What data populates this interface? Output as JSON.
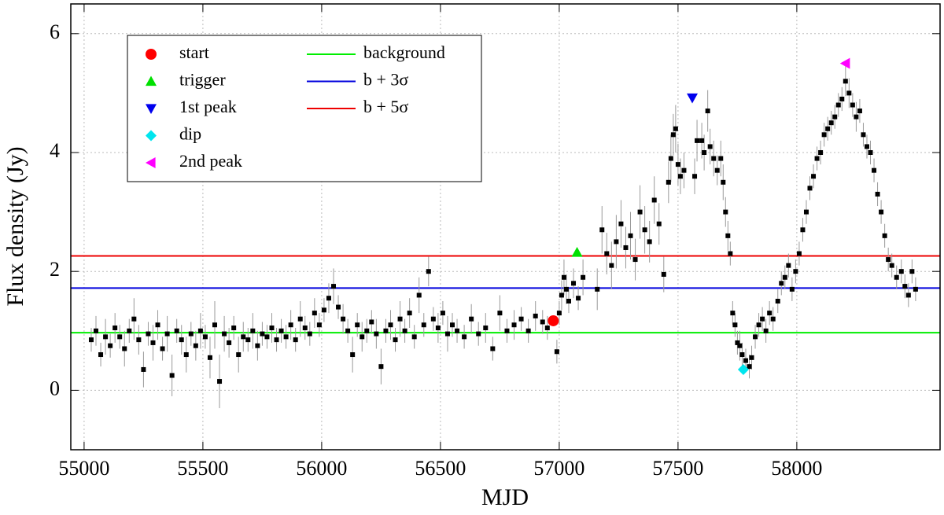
{
  "chart_data": {
    "type": "scatter",
    "xlabel": "MJD",
    "ylabel": "Flux density (Jy)",
    "xlim": [
      54944,
      58603
    ],
    "ylim": [
      -1,
      6.5
    ],
    "xticks": [
      55000,
      55500,
      56000,
      56500,
      57000,
      57500,
      58000
    ],
    "yticks": [
      0,
      2,
      4,
      6
    ],
    "grid": true,
    "legend": "upper left",
    "observations": {
      "color": "#000000",
      "error_color": "#999999",
      "x": [
        55030,
        55050,
        55070,
        55090,
        55110,
        55130,
        55150,
        55170,
        55190,
        55210,
        55230,
        55250,
        55270,
        55290,
        55310,
        55330,
        55350,
        55370,
        55390,
        55410,
        55430,
        55450,
        55470,
        55490,
        55510,
        55530,
        55550,
        55570,
        55590,
        55610,
        55630,
        55650,
        55670,
        55690,
        55710,
        55730,
        55750,
        55770,
        55790,
        55810,
        55830,
        55850,
        55870,
        55890,
        55910,
        55930,
        55950,
        55970,
        55990,
        56010,
        56030,
        56050,
        56070,
        56090,
        56110,
        56130,
        56150,
        56170,
        56190,
        56210,
        56230,
        56250,
        56270,
        56290,
        56310,
        56330,
        56350,
        56370,
        56390,
        56410,
        56430,
        56450,
        56470,
        56490,
        56510,
        56530,
        56550,
        56570,
        56600,
        56630,
        56660,
        56690,
        56720,
        56750,
        56780,
        56810,
        56840,
        56870,
        56900,
        56930,
        56950,
        56990,
        57000,
        57010,
        57020,
        57030,
        57040,
        57060,
        57080,
        57100,
        57160,
        57180,
        57200,
        57220,
        57240,
        57260,
        57280,
        57300,
        57320,
        57340,
        57360,
        57380,
        57400,
        57420,
        57440,
        57460,
        57470,
        57480,
        57490,
        57500,
        57510,
        57525,
        57570,
        57580,
        57600,
        57610,
        57625,
        57635,
        57650,
        57665,
        57680,
        57690,
        57700,
        57710,
        57720,
        57730,
        57740,
        57750,
        57760,
        57770,
        57785,
        57800,
        57810,
        57825,
        57840,
        57855,
        57870,
        57885,
        57900,
        57920,
        57935,
        57950,
        57965,
        57980,
        57995,
        58010,
        58025,
        58040,
        58055,
        58070,
        58085,
        58100,
        58115,
        58130,
        58145,
        58160,
        58175,
        58190,
        58205,
        58220,
        58235,
        58250,
        58265,
        58280,
        58295,
        58310,
        58325,
        58340,
        58355,
        58370,
        58385,
        58400,
        58420,
        58440,
        58455,
        58470,
        58485,
        58500
      ],
      "values": [
        0.85,
        1.0,
        0.6,
        0.9,
        0.75,
        1.05,
        0.9,
        0.7,
        1.0,
        1.2,
        0.85,
        0.35,
        0.95,
        0.8,
        1.1,
        0.7,
        0.95,
        0.25,
        1.0,
        0.85,
        0.6,
        0.95,
        0.75,
        1.0,
        0.9,
        0.55,
        1.1,
        0.15,
        0.95,
        0.8,
        1.05,
        0.6,
        0.9,
        0.85,
        1.0,
        0.75,
        0.95,
        0.9,
        1.05,
        0.85,
        1.0,
        0.9,
        1.1,
        0.85,
        1.2,
        1.05,
        0.95,
        1.3,
        1.1,
        1.35,
        1.55,
        1.75,
        1.4,
        1.2,
        1.0,
        0.6,
        1.1,
        0.9,
        1.0,
        1.15,
        0.95,
        0.4,
        1.0,
        1.1,
        0.85,
        1.2,
        1.0,
        1.3,
        0.9,
        1.6,
        1.1,
        2.0,
        1.2,
        1.05,
        1.3,
        0.95,
        1.1,
        1.0,
        0.9,
        1.2,
        0.95,
        1.05,
        0.7,
        1.3,
        1.0,
        1.1,
        1.2,
        1.0,
        1.25,
        1.15,
        1.05,
        0.65,
        1.3,
        1.6,
        1.9,
        1.7,
        1.5,
        1.8,
        1.55,
        1.9,
        1.7,
        2.7,
        2.3,
        2.1,
        2.5,
        2.8,
        2.4,
        2.6,
        2.2,
        3.0,
        2.7,
        2.5,
        3.2,
        2.8,
        1.95,
        3.5,
        3.9,
        4.3,
        4.4,
        3.8,
        3.6,
        3.7,
        3.6,
        4.2,
        4.2,
        4.0,
        4.7,
        4.1,
        3.9,
        3.7,
        3.9,
        3.5,
        3.0,
        2.6,
        2.3,
        1.3,
        1.1,
        0.8,
        0.75,
        0.6,
        0.5,
        0.4,
        0.55,
        0.9,
        1.1,
        1.2,
        1.0,
        1.3,
        1.2,
        1.5,
        1.8,
        1.9,
        2.1,
        1.7,
        2.0,
        2.3,
        2.7,
        3.0,
        3.4,
        3.6,
        3.9,
        4.0,
        4.3,
        4.4,
        4.5,
        4.6,
        4.8,
        4.9,
        5.2,
        5.0,
        4.8,
        4.6,
        4.7,
        4.3,
        4.1,
        4.0,
        3.7,
        3.3,
        3.0,
        2.6,
        2.2,
        2.1,
        1.9,
        2.0,
        1.75,
        1.6,
        2.0,
        1.7
      ],
      "errors": [
        0.2,
        0.25,
        0.2,
        0.3,
        0.2,
        0.25,
        0.2,
        0.3,
        0.2,
        0.35,
        0.25,
        0.3,
        0.2,
        0.3,
        0.25,
        0.2,
        0.3,
        0.35,
        0.2,
        0.25,
        0.3,
        0.2,
        0.25,
        0.3,
        0.2,
        0.35,
        0.4,
        0.45,
        0.3,
        0.25,
        0.2,
        0.3,
        0.25,
        0.2,
        0.3,
        0.25,
        0.2,
        0.2,
        0.25,
        0.2,
        0.2,
        0.2,
        0.25,
        0.2,
        0.3,
        0.2,
        0.2,
        0.25,
        0.2,
        0.2,
        0.25,
        0.3,
        0.2,
        0.25,
        0.2,
        0.3,
        0.2,
        0.25,
        0.2,
        0.2,
        0.25,
        0.3,
        0.2,
        0.25,
        0.2,
        0.3,
        0.2,
        0.25,
        0.2,
        0.3,
        0.2,
        0.25,
        0.2,
        0.25,
        0.2,
        0.3,
        0.2,
        0.2,
        0.2,
        0.25,
        0.2,
        0.25,
        0.2,
        0.3,
        0.2,
        0.25,
        0.2,
        0.2,
        0.25,
        0.2,
        0.2,
        0.2,
        0.2,
        0.25,
        0.3,
        0.25,
        0.2,
        0.25,
        0.2,
        0.3,
        0.35,
        0.4,
        0.35,
        0.4,
        0.45,
        0.4,
        0.35,
        0.4,
        0.35,
        0.45,
        0.4,
        0.35,
        0.4,
        0.35,
        0.3,
        0.35,
        0.4,
        0.35,
        0.4,
        0.35,
        0.3,
        0.3,
        0.3,
        0.35,
        0.3,
        0.3,
        0.35,
        0.3,
        0.3,
        0.25,
        0.3,
        0.3,
        0.25,
        0.25,
        0.2,
        0.2,
        0.2,
        0.2,
        0.25,
        0.2,
        0.2,
        0.2,
        0.2,
        0.2,
        0.2,
        0.2,
        0.2,
        0.2,
        0.2,
        0.2,
        0.2,
        0.2,
        0.2,
        0.2,
        0.2,
        0.2,
        0.2,
        0.2,
        0.2,
        0.2,
        0.2,
        0.2,
        0.2,
        0.2,
        0.2,
        0.2,
        0.2,
        0.2,
        0.25,
        0.25,
        0.2,
        0.25,
        0.2,
        0.2,
        0.2,
        0.2,
        0.2,
        0.2,
        0.2,
        0.2,
        0.2,
        0.2,
        0.2,
        0.2,
        0.2,
        0.2,
        0.2,
        0.2
      ]
    },
    "series": [
      {
        "name": "start",
        "color": "#ff0000",
        "marker": "circle",
        "x": [
          56975
        ],
        "values": [
          1.17
        ]
      },
      {
        "name": "trigger",
        "color": "#00e000",
        "marker": "triangle-up",
        "x": [
          57075
        ],
        "values": [
          2.32
        ]
      },
      {
        "name": "1st peak",
        "color": "#0000ee",
        "marker": "triangle-down",
        "x": [
          57560
        ],
        "values": [
          4.92
        ]
      },
      {
        "name": "dip",
        "color": "#00e5ee",
        "marker": "diamond",
        "x": [
          57775
        ],
        "values": [
          0.35
        ]
      },
      {
        "name": "2nd peak",
        "color": "#ff00ff",
        "marker": "triangle-left",
        "x": [
          58205
        ],
        "values": [
          5.5
        ]
      }
    ],
    "hlines": [
      {
        "name": "background",
        "color": "#00ee00",
        "value": 0.97
      },
      {
        "name": "b + 3σ",
        "color": "#0000dd",
        "value": 1.72
      },
      {
        "name": "b + 5σ",
        "color": "#ee0000",
        "value": 2.26
      }
    ]
  }
}
